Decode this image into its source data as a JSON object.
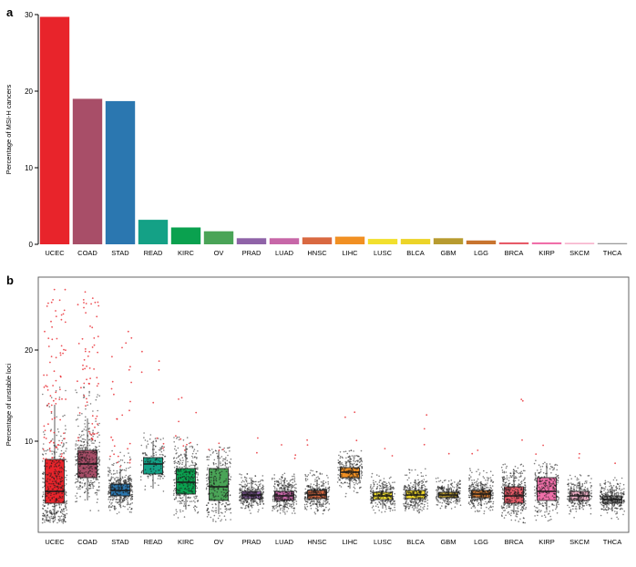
{
  "figure": {
    "panels": [
      {
        "label": "a"
      },
      {
        "label": "b"
      }
    ]
  },
  "chart_data": [
    {
      "type": "bar",
      "panel": "a",
      "title": "",
      "xlabel": "",
      "ylabel": "Percentage of MSI-H cancers",
      "ylim": [
        0,
        30
      ],
      "yticks": [
        0,
        10,
        20,
        30
      ],
      "grid": false,
      "legend": "none",
      "categories": [
        "UCEC",
        "COAD",
        "STAD",
        "READ",
        "KIRC",
        "OV",
        "PRAD",
        "LUAD",
        "HNSC",
        "LIHC",
        "LUSC",
        "BLCA",
        "GBM",
        "LGG",
        "BRCA",
        "KIRP",
        "SKCM",
        "THCA"
      ],
      "values": [
        29.7,
        19.0,
        18.7,
        3.2,
        2.2,
        1.7,
        0.8,
        0.8,
        0.9,
        1.0,
        0.7,
        0.7,
        0.8,
        0.5,
        0.25,
        0.25,
        0.2,
        0.15
      ],
      "colors": [
        "#e8242b",
        "#a84e68",
        "#2b77b0",
        "#14a186",
        "#0aa14f",
        "#4aa457",
        "#8f63a8",
        "#c767a8",
        "#d96941",
        "#f19023",
        "#f2e02e",
        "#ecd428",
        "#b89b30",
        "#c8742f",
        "#e75a68",
        "#f06fa9",
        "#f7b6ce",
        "#9c9c9c"
      ]
    },
    {
      "type": "scatter",
      "style": "boxplot-with-jittered-points",
      "panel": "b",
      "title": "",
      "xlabel": "",
      "ylabel": "Percentage of unstable loci",
      "ylim": [
        0,
        28
      ],
      "yticks": [
        10,
        20
      ],
      "grid": false,
      "legend": "none",
      "point_color_black": "#1a1a1a",
      "point_color_red": "#e8242b",
      "categories": [
        "UCEC",
        "COAD",
        "STAD",
        "READ",
        "KIRC",
        "OV",
        "PRAD",
        "LUAD",
        "HNSC",
        "LIHC",
        "LUSC",
        "BLCA",
        "GBM",
        "LGG",
        "BRCA",
        "KIRP",
        "SKCM",
        "THCA"
      ],
      "colors": [
        "#e8242b",
        "#a84e68",
        "#2b77b0",
        "#14a186",
        "#0aa14f",
        "#4aa457",
        "#8f63a8",
        "#c767a8",
        "#d96941",
        "#f19023",
        "#f2e02e",
        "#ecd428",
        "#b89b30",
        "#c8742f",
        "#e75a68",
        "#f06fa9",
        "#f7b6ce",
        "#9c9c9c"
      ],
      "boxes": [
        {
          "q1": 3.2,
          "median": 4.5,
          "q3": 8.0,
          "whisker_low": 1.5,
          "whisker_high": 14.0,
          "points": {
            "n": 420,
            "max": 16.0
          },
          "red_points": {
            "n": 85,
            "min": 8.0,
            "max": 27.0
          }
        },
        {
          "q1": 6.0,
          "median": 7.5,
          "q3": 9.0,
          "whisker_low": 3.5,
          "whisker_high": 12.5,
          "points": {
            "n": 380,
            "max": 16.0
          },
          "red_points": {
            "n": 65,
            "min": 10.0,
            "max": 26.5
          }
        },
        {
          "q1": 4.0,
          "median": 4.6,
          "q3": 5.3,
          "whisker_low": 2.8,
          "whisker_high": 7.0,
          "points": {
            "n": 360,
            "max": 9.0
          },
          "red_points": {
            "n": 28,
            "min": 7.0,
            "max": 24.0
          }
        },
        {
          "q1": 6.4,
          "median": 7.5,
          "q3": 8.2,
          "whisker_low": 4.8,
          "whisker_high": 10.0,
          "points": {
            "n": 140,
            "max": 11.0
          },
          "red_points": {
            "n": 8,
            "min": 9.0,
            "max": 20.0
          }
        },
        {
          "q1": 4.2,
          "median": 5.5,
          "q3": 7.0,
          "whisker_low": 2.5,
          "whisker_high": 9.5,
          "points": {
            "n": 320,
            "max": 10.5
          },
          "red_points": {
            "n": 10,
            "min": 9.0,
            "max": 16.0
          }
        },
        {
          "q1": 3.5,
          "median": 5.0,
          "q3": 7.0,
          "whisker_low": 2.0,
          "whisker_high": 9.0,
          "points": {
            "n": 260,
            "max": 9.5
          },
          "red_points": {
            "n": 4,
            "min": 9.0,
            "max": 13.0
          }
        },
        {
          "q1": 3.7,
          "median": 4.1,
          "q3": 4.5,
          "whisker_low": 2.8,
          "whisker_high": 5.6,
          "points": {
            "n": 320,
            "max": 6.5
          },
          "red_points": {
            "n": 2,
            "min": 8.5,
            "max": 11.0
          }
        },
        {
          "q1": 3.5,
          "median": 4.0,
          "q3": 4.5,
          "whisker_low": 2.4,
          "whisker_high": 5.8,
          "points": {
            "n": 330,
            "max": 6.5
          },
          "red_points": {
            "n": 3,
            "min": 8.0,
            "max": 12.0
          }
        },
        {
          "q1": 3.7,
          "median": 4.1,
          "q3": 4.6,
          "whisker_low": 2.8,
          "whisker_high": 5.8,
          "points": {
            "n": 330,
            "max": 6.8
          },
          "red_points": {
            "n": 2,
            "min": 9.0,
            "max": 12.0
          }
        },
        {
          "q1": 6.0,
          "median": 6.6,
          "q3": 7.1,
          "whisker_low": 4.8,
          "whisker_high": 8.4,
          "points": {
            "n": 260,
            "max": 9.0
          },
          "red_points": {
            "n": 3,
            "min": 10.0,
            "max": 14.0
          }
        },
        {
          "q1": 3.6,
          "median": 4.0,
          "q3": 4.4,
          "whisker_low": 2.6,
          "whisker_high": 5.5,
          "points": {
            "n": 260,
            "max": 6.5
          },
          "red_points": {
            "n": 2,
            "min": 8.0,
            "max": 10.0
          }
        },
        {
          "q1": 3.7,
          "median": 4.1,
          "q3": 4.6,
          "whisker_low": 2.6,
          "whisker_high": 5.8,
          "points": {
            "n": 300,
            "max": 7.0
          },
          "red_points": {
            "n": 3,
            "min": 8.0,
            "max": 13.0
          }
        },
        {
          "q1": 3.8,
          "median": 4.1,
          "q3": 4.4,
          "whisker_low": 3.0,
          "whisker_high": 5.3,
          "points": {
            "n": 240,
            "max": 6.0
          },
          "red_points": {
            "n": 1,
            "min": 8.5,
            "max": 9.0
          }
        },
        {
          "q1": 3.8,
          "median": 4.2,
          "q3": 4.6,
          "whisker_low": 2.9,
          "whisker_high": 5.6,
          "points": {
            "n": 320,
            "max": 7.0
          },
          "red_points": {
            "n": 2,
            "min": 8.0,
            "max": 10.0
          }
        },
        {
          "q1": 3.2,
          "median": 4.0,
          "q3": 5.0,
          "whisker_low": 2.0,
          "whisker_high": 6.6,
          "points": {
            "n": 360,
            "max": 7.5
          },
          "red_points": {
            "n": 3,
            "min": 8.0,
            "max": 15.0
          }
        },
        {
          "q1": 3.5,
          "median": 4.5,
          "q3": 6.0,
          "whisker_low": 2.4,
          "whisker_high": 7.6,
          "points": {
            "n": 260,
            "max": 8.0
          },
          "red_points": {
            "n": 2,
            "min": 8.5,
            "max": 10.0
          }
        },
        {
          "q1": 3.5,
          "median": 4.0,
          "q3": 4.5,
          "whisker_low": 2.5,
          "whisker_high": 5.6,
          "points": {
            "n": 260,
            "max": 7.0
          },
          "red_points": {
            "n": 2,
            "min": 8.0,
            "max": 9.0
          }
        },
        {
          "q1": 3.2,
          "median": 3.6,
          "q3": 4.0,
          "whisker_low": 2.3,
          "whisker_high": 5.0,
          "points": {
            "n": 300,
            "max": 6.0
          },
          "red_points": {
            "n": 1,
            "min": 7.5,
            "max": 8.0
          }
        }
      ]
    }
  ]
}
